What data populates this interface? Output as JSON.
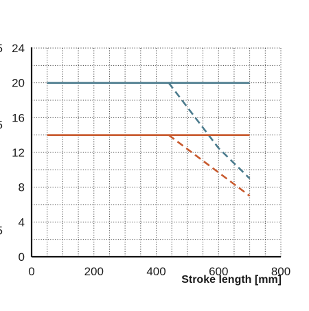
{
  "chart_data": {
    "type": "line",
    "title": "",
    "xlabel": "Stroke length [mm]",
    "ylabel": "",
    "xlim": [
      0,
      800
    ],
    "ylim": [
      0,
      24
    ],
    "x_ticks": [
      0,
      200,
      400,
      600,
      800
    ],
    "y_ticks": [
      0,
      4,
      8,
      12,
      16,
      20,
      24
    ],
    "left_edge_labels": [
      "5",
      "5",
      "5"
    ],
    "grid": true,
    "grid_style": "dotted",
    "legend": "none",
    "series": [
      {
        "color": "#4a7a8c",
        "style": "solid",
        "points": [
          [
            50,
            20
          ],
          [
            700,
            20
          ]
        ]
      },
      {
        "color": "#4a7a8c",
        "style": "dashed",
        "points": [
          [
            440,
            20
          ],
          [
            600,
            12.5
          ],
          [
            700,
            9
          ]
        ]
      },
      {
        "color": "#c85a2e",
        "style": "solid",
        "points": [
          [
            50,
            14
          ],
          [
            700,
            14
          ]
        ]
      },
      {
        "color": "#c85a2e",
        "style": "dashed",
        "points": [
          [
            440,
            14
          ],
          [
            700,
            7
          ]
        ]
      }
    ]
  }
}
